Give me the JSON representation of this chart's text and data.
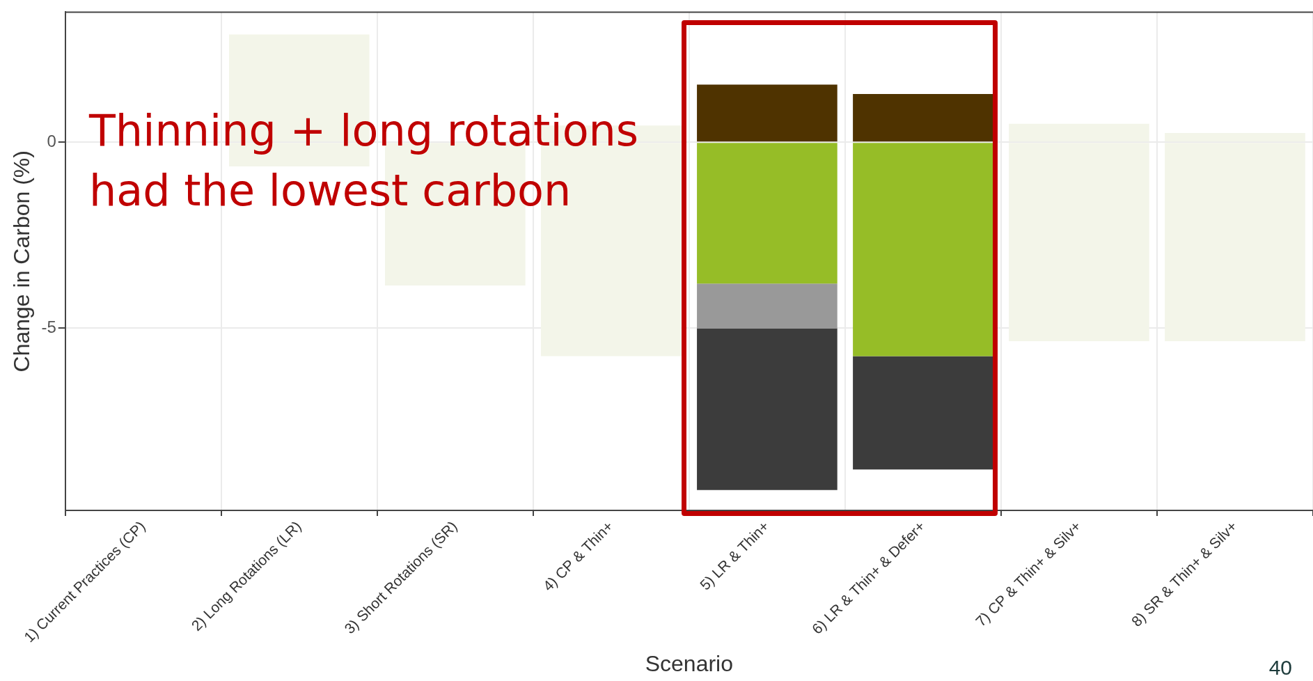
{
  "chart_data": {
    "type": "bar",
    "stacked": true,
    "xlabel": "Scenario",
    "ylabel": "Change in Carbon (%)",
    "categories": [
      "1) Current Practices (CP)",
      "2) Long Rotations (LR)",
      "3) Short Rotations (SR)",
      "4) CP & Thin+",
      "5) LR & Thin+",
      "6) LR & Thin+ & Defer+",
      "7) CP & Thin+ & Silv+",
      "8) SR & Thin+ & Silv+"
    ],
    "series": [
      {
        "color": "#f3f5e9",
        "values": [
          null,
          2.9,
          null,
          0.45,
          null,
          null,
          0.5,
          0.25
        ]
      },
      {
        "color": "#f3f5e9",
        "values": [
          null,
          -0.65,
          -3.85,
          -5.75,
          null,
          null,
          -5.35,
          -5.35
        ]
      },
      {
        "color": "#4f3300",
        "values": [
          null,
          null,
          null,
          null,
          1.55,
          1.3,
          null,
          null
        ]
      },
      {
        "color": "#96bd27",
        "values": [
          null,
          null,
          null,
          null,
          -3.8,
          -5.75,
          null,
          null
        ]
      },
      {
        "color": "#999999",
        "values": [
          null,
          null,
          null,
          null,
          -1.2,
          null,
          null,
          null
        ]
      },
      {
        "color": "#3c3c3c",
        "values": [
          null,
          null,
          null,
          null,
          -4.35,
          -3.05,
          null,
          null
        ]
      }
    ],
    "ylim": [
      -9.9,
      3.5
    ],
    "yticks": [
      -5,
      0
    ],
    "grid": true,
    "legend": false,
    "annotations": [
      "Thinning + long rotations had the lowest carbon",
      "40"
    ]
  }
}
